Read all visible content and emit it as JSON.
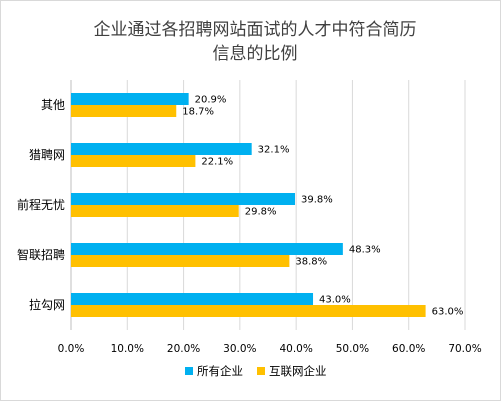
{
  "chart_data": {
    "type": "bar",
    "orientation": "horizontal",
    "title_line1": "企业通过各招聘网站面试的人才中符合简历",
    "title_line2": "信息的比例",
    "categories": [
      "其他",
      "猎聘网",
      "前程无忧",
      "智联招聘",
      "拉勾网"
    ],
    "series": [
      {
        "name": "所有企业",
        "color": "#00b0f0",
        "values": [
          20.9,
          32.1,
          39.8,
          48.3,
          43.0
        ],
        "labels": [
          "20.9%",
          "32.1%",
          "39.8%",
          "48.3%",
          "43.0%"
        ]
      },
      {
        "name": "互联网企业",
        "color": "#ffc000",
        "values": [
          18.7,
          22.1,
          29.8,
          38.8,
          63.0
        ],
        "labels": [
          "18.7%",
          "22.1%",
          "29.8%",
          "38.8%",
          "63.0%"
        ]
      }
    ],
    "xlim": [
      0,
      70
    ],
    "x_ticks": [
      "0.0%",
      "10.0%",
      "20.0%",
      "30.0%",
      "40.0%",
      "50.0%",
      "60.0%",
      "70.0%"
    ],
    "grid": true,
    "legend_position": "bottom"
  }
}
